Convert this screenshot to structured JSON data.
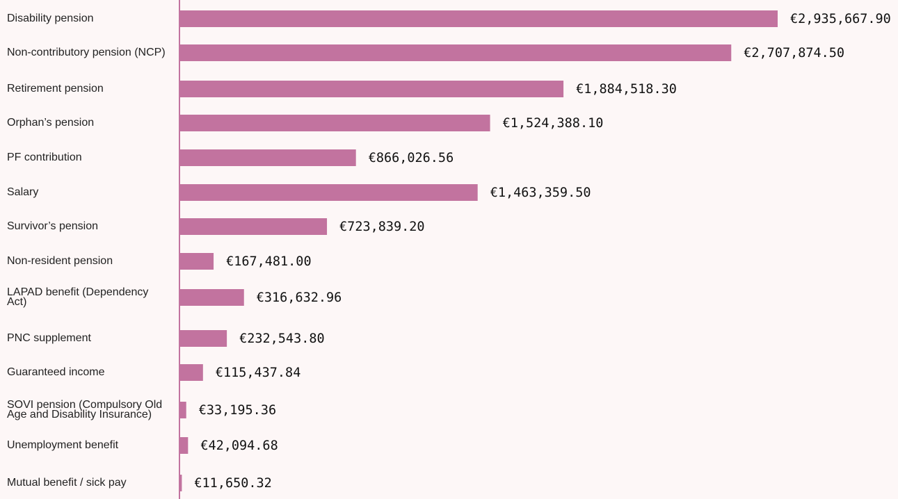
{
  "chart_data": {
    "type": "bar",
    "orientation": "horizontal",
    "color": "#c2739f",
    "categories": [
      "Disability pension",
      "Non-contributory pension (NCP)",
      "Retirement pension",
      "Orphan’s pension",
      "PF contribution",
      "Salary",
      "Survivor’s pension",
      "Non-resident pension",
      "LAPAD benefit (Dependency Act)",
      "PNC supplement",
      "Guaranteed income",
      "SOVI pension (Compulsory Old Age and Disability Insurance)",
      "Unemployment benefit",
      "Mutual benefit / sick pay"
    ],
    "values": [
      2935667.9,
      2707874.5,
      1884518.3,
      1524388.1,
      866026.56,
      1463359.5,
      723839.2,
      167481.0,
      316632.96,
      232543.8,
      115437.84,
      33195.36,
      42094.68,
      11650.32
    ],
    "value_labels": [
      "€2,935,667.90",
      "€2,707,874.50",
      "€1,884,518.30",
      "€1,524,388.10",
      "€866,026.56",
      "€1,463,359.50",
      "€723,839.20",
      "€167,481.00",
      "€316,632.96",
      "€232,543.80",
      "€115,437.84",
      "€33,195.36",
      "€42,094.68",
      "€11,650.32"
    ]
  }
}
